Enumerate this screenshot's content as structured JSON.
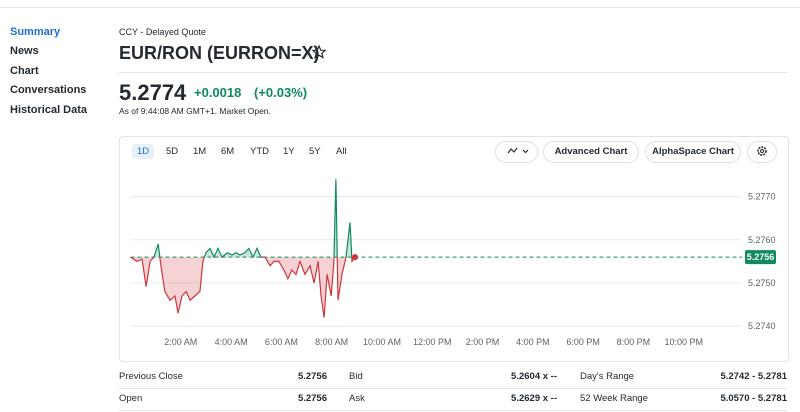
{
  "nav": [
    "Summary",
    "News",
    "Chart",
    "Conversations",
    "Historical Data"
  ],
  "header": {
    "exchange": "CCY - Delayed Quote",
    "title": "EUR/RON (EURRON=X)",
    "price": "5.2774",
    "change": "+0.0018",
    "change_pct": "(+0.03%)",
    "as_of": "As of 9:44:08 AM GMT+1. Market Open."
  },
  "ranges": [
    "1D",
    "5D",
    "1M",
    "6M",
    "YTD",
    "1Y",
    "5Y",
    "All"
  ],
  "buttons": [
    "Advanced Chart",
    "AlphaSpace Chart"
  ],
  "chart_data": {
    "type": "line",
    "x": [
      0,
      0.26,
      0.46,
      0.62,
      0.78,
      0.93,
      1.1,
      1.21,
      1.37,
      1.57,
      1.77,
      1.89,
      2.05,
      2.21,
      2.37,
      2.56,
      2.76,
      2.88,
      3.0,
      3.16,
      3.32,
      3.48,
      3.64,
      3.84,
      4.04,
      4.2,
      4.35,
      4.55,
      4.71,
      4.87,
      5.03,
      5.19,
      5.35,
      5.55,
      5.71,
      5.9,
      6.1,
      6.26,
      6.42,
      6.58,
      6.74,
      6.94,
      7.14,
      7.3,
      7.46,
      7.58,
      7.7,
      7.82,
      7.98,
      8.09,
      8.17,
      8.25,
      8.41,
      8.57,
      8.73,
      8.81,
      8.93
    ],
    "values": [
      5.2756,
      5.2755,
      5.27555,
      5.27492,
      5.2755,
      5.2756,
      5.2759,
      5.2754,
      5.2748,
      5.2746,
      5.2747,
      5.2743,
      5.2747,
      5.2748,
      5.2746,
      5.2747,
      5.2748,
      5.2755,
      5.2757,
      5.2758,
      5.2756,
      5.2758,
      5.2756,
      5.2757,
      5.27565,
      5.2757,
      5.27565,
      5.2757,
      5.2758,
      5.2756,
      5.2758,
      5.2756,
      5.2756,
      5.2754,
      5.2755,
      5.2755,
      5.2753,
      5.2751,
      5.2753,
      5.2752,
      5.2755,
      5.2752,
      5.2754,
      5.275,
      5.2755,
      5.2747,
      5.2742,
      5.2752,
      5.2747,
      5.2755,
      5.2774,
      5.2746,
      5.2752,
      5.2756,
      5.2764,
      5.2755,
      5.2756
    ],
    "baseline": 5.2756,
    "colors": {
      "up": "#0f8a5f",
      "down": "#d0353d"
    },
    "xlim": [
      0,
      24
    ],
    "xticks": [
      {
        "value": 2,
        "label": "2:00 AM"
      },
      {
        "value": 4,
        "label": "4:00 AM"
      },
      {
        "value": 6,
        "label": "6:00 AM"
      },
      {
        "value": 8,
        "label": "8:00 AM"
      },
      {
        "value": 10,
        "label": "10:00 AM"
      },
      {
        "value": 12,
        "label": "12:00 PM"
      },
      {
        "value": 14,
        "label": "2:00 PM"
      },
      {
        "value": 16,
        "label": "4:00 PM"
      },
      {
        "value": 18,
        "label": "6:00 PM"
      },
      {
        "value": 20,
        "label": "8:00 PM"
      },
      {
        "value": 22,
        "label": "10:00 PM"
      }
    ],
    "ylim": [
      5.27375,
      5.2775
    ],
    "yticks": [
      {
        "value": 5.274,
        "label": "5.2740"
      },
      {
        "value": 5.275,
        "label": "5.2750"
      },
      {
        "value": 5.276,
        "label": "5.2760"
      },
      {
        "value": 5.277,
        "label": "5.2770"
      }
    ],
    "grid": true
  },
  "stats": [
    [
      "Previous Close",
      "5.2756",
      "Bid",
      "5.2604 x --",
      "Day's Range",
      "5.2742 - 5.2781"
    ],
    [
      "Open",
      "5.2756",
      "Ask",
      "5.2629 x --",
      "52 Week Range",
      "5.0570 - 5.2781"
    ]
  ]
}
